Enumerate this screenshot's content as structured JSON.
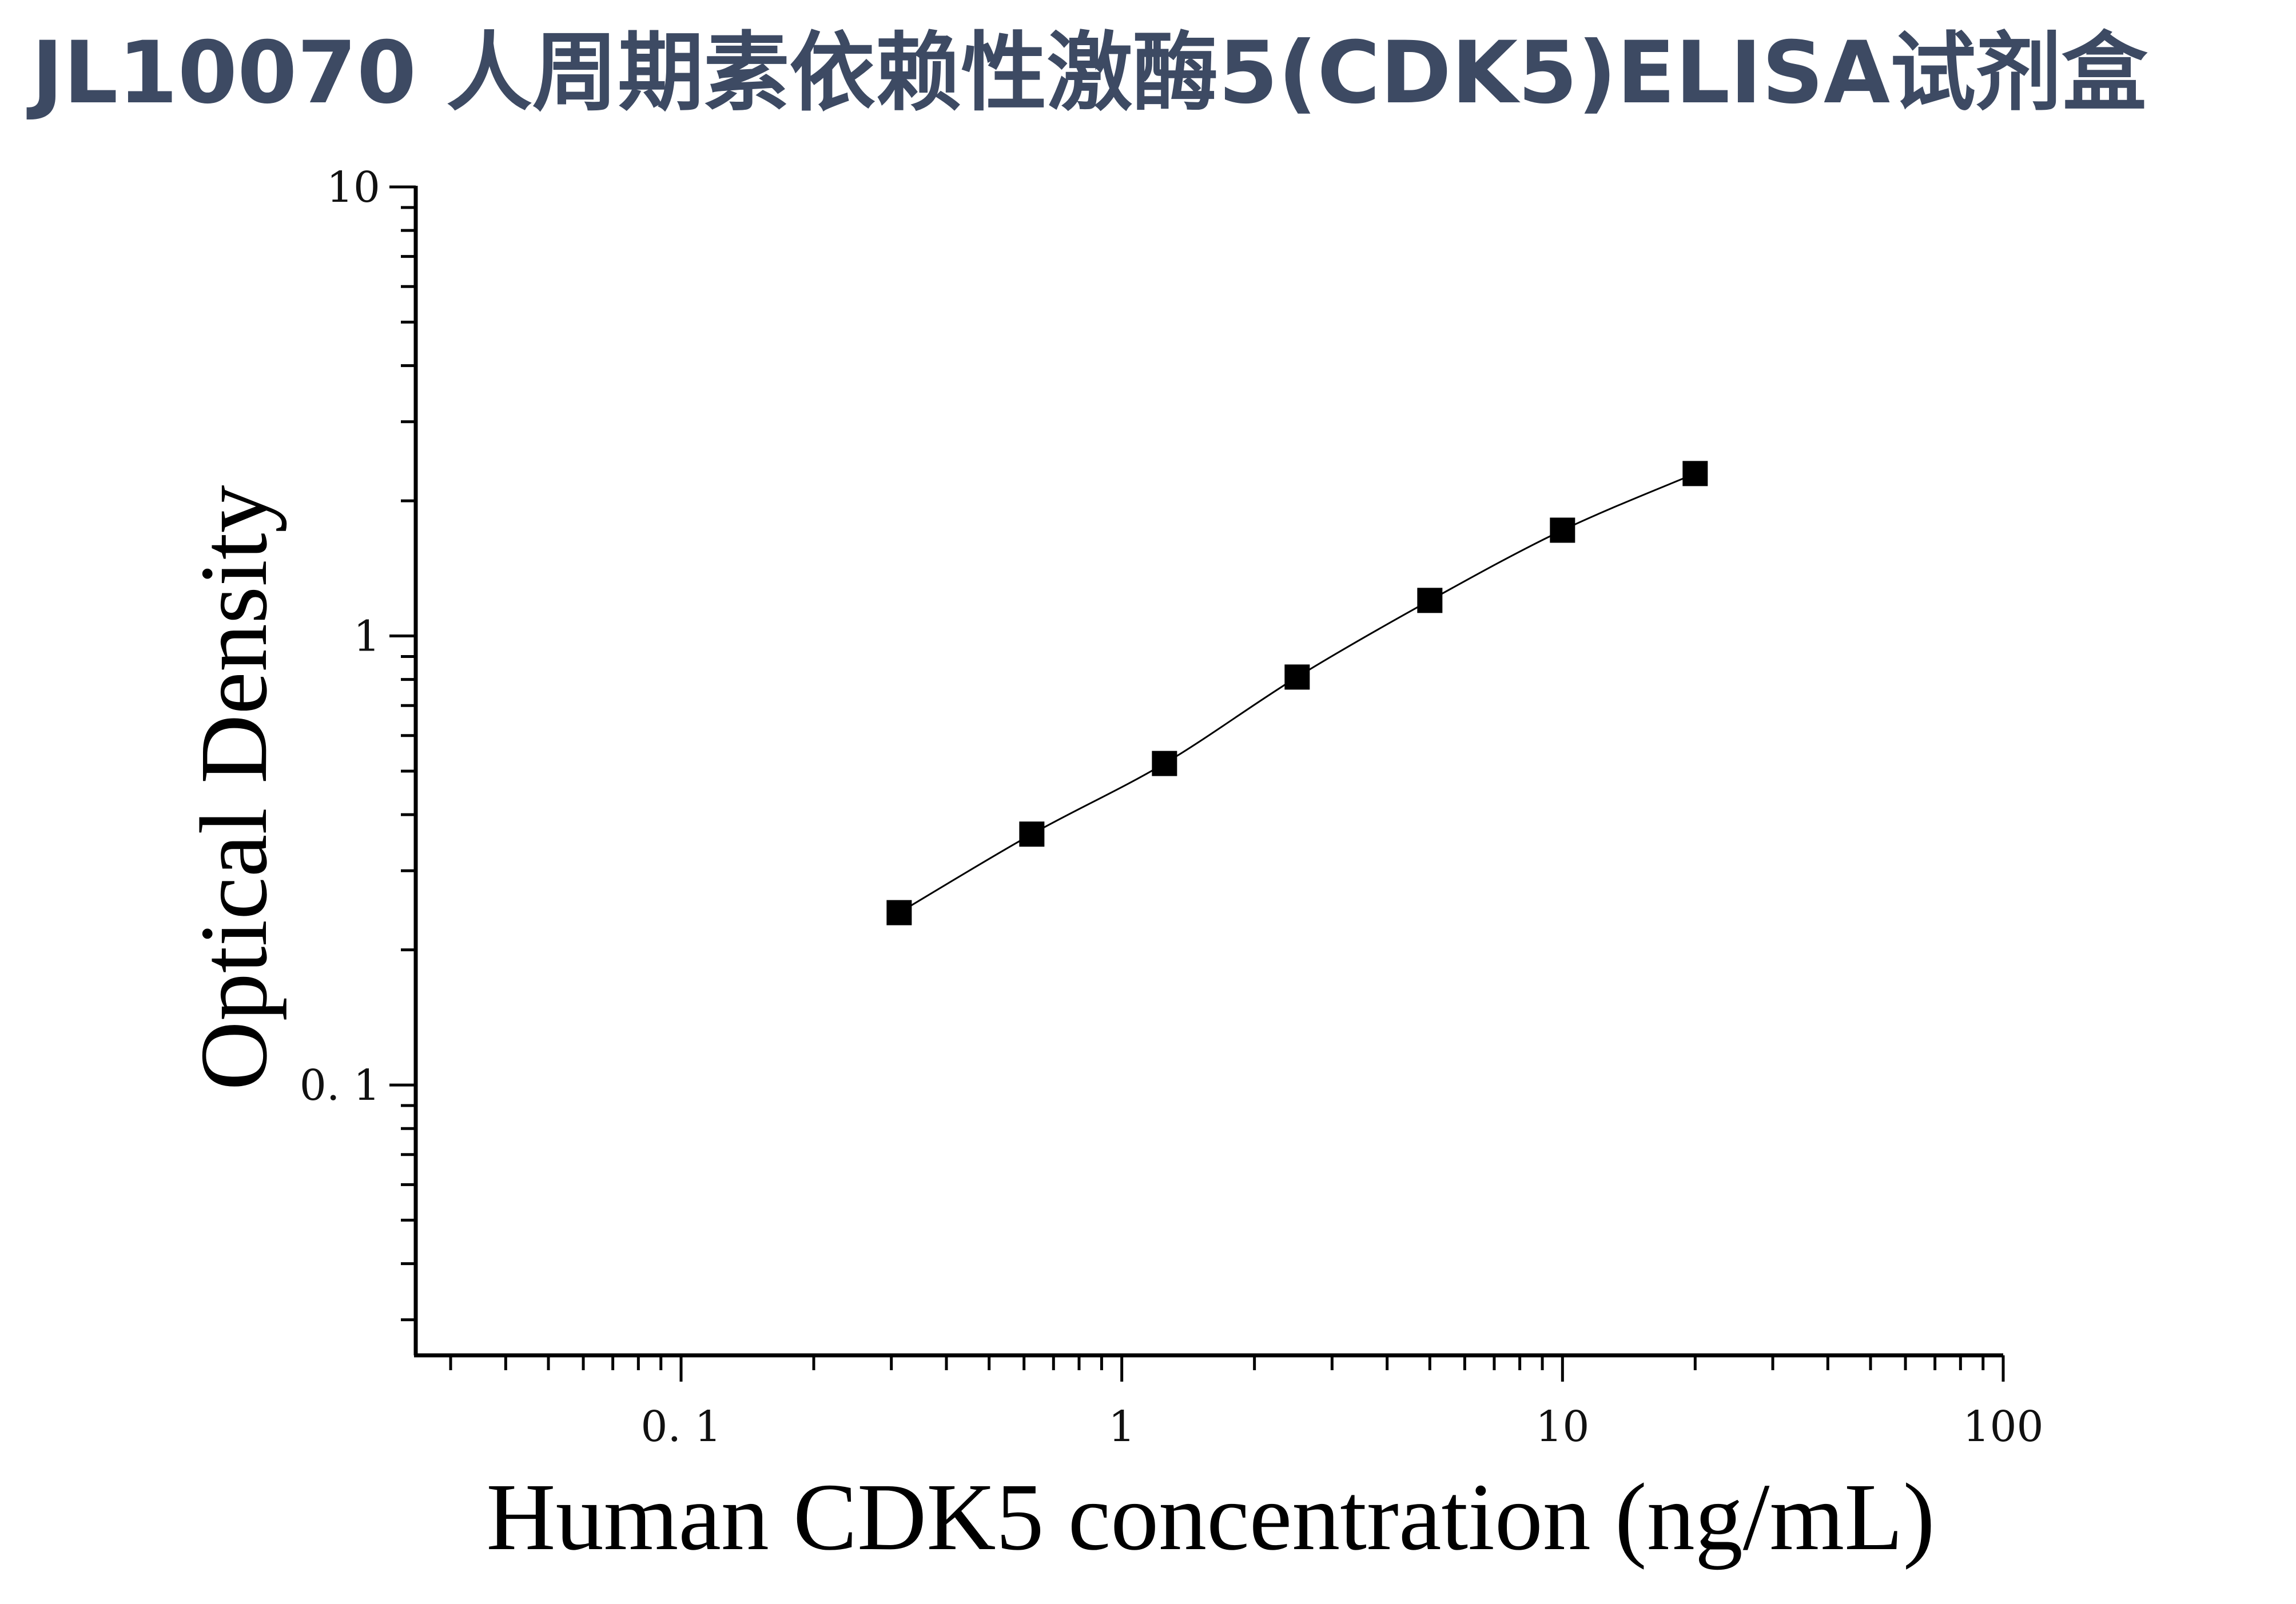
{
  "title": "JL10070 人周期素依赖性激酶5(CDK5)ELISA试剂盒",
  "chart_data": {
    "type": "scatter",
    "xscale": "log",
    "yscale": "log",
    "xlabel": "Human CDK5 concentration (ng/mL)",
    "ylabel": "Optical Density",
    "xlim": [
      0.025,
      100
    ],
    "ylim": [
      0.025,
      10
    ],
    "xticks": [
      {
        "value": 0.1,
        "label": "0. 1"
      },
      {
        "value": 1,
        "label": "1"
      },
      {
        "value": 10,
        "label": "10"
      },
      {
        "value": 100,
        "label": "100"
      }
    ],
    "yticks": [
      {
        "value": 0.1,
        "label": "0. 1"
      },
      {
        "value": 1,
        "label": "1"
      },
      {
        "value": 10,
        "label": "10"
      }
    ],
    "series": [
      {
        "marker": "square",
        "fit_line": true,
        "x": [
          0.3125,
          0.625,
          1.25,
          2.5,
          5,
          10,
          20
        ],
        "y": [
          0.242,
          0.362,
          0.52,
          0.81,
          1.2,
          1.72,
          2.3
        ]
      }
    ],
    "grid": false,
    "colors": {
      "points": "#000000",
      "line": "#000000",
      "title": "#3d4a63"
    }
  }
}
